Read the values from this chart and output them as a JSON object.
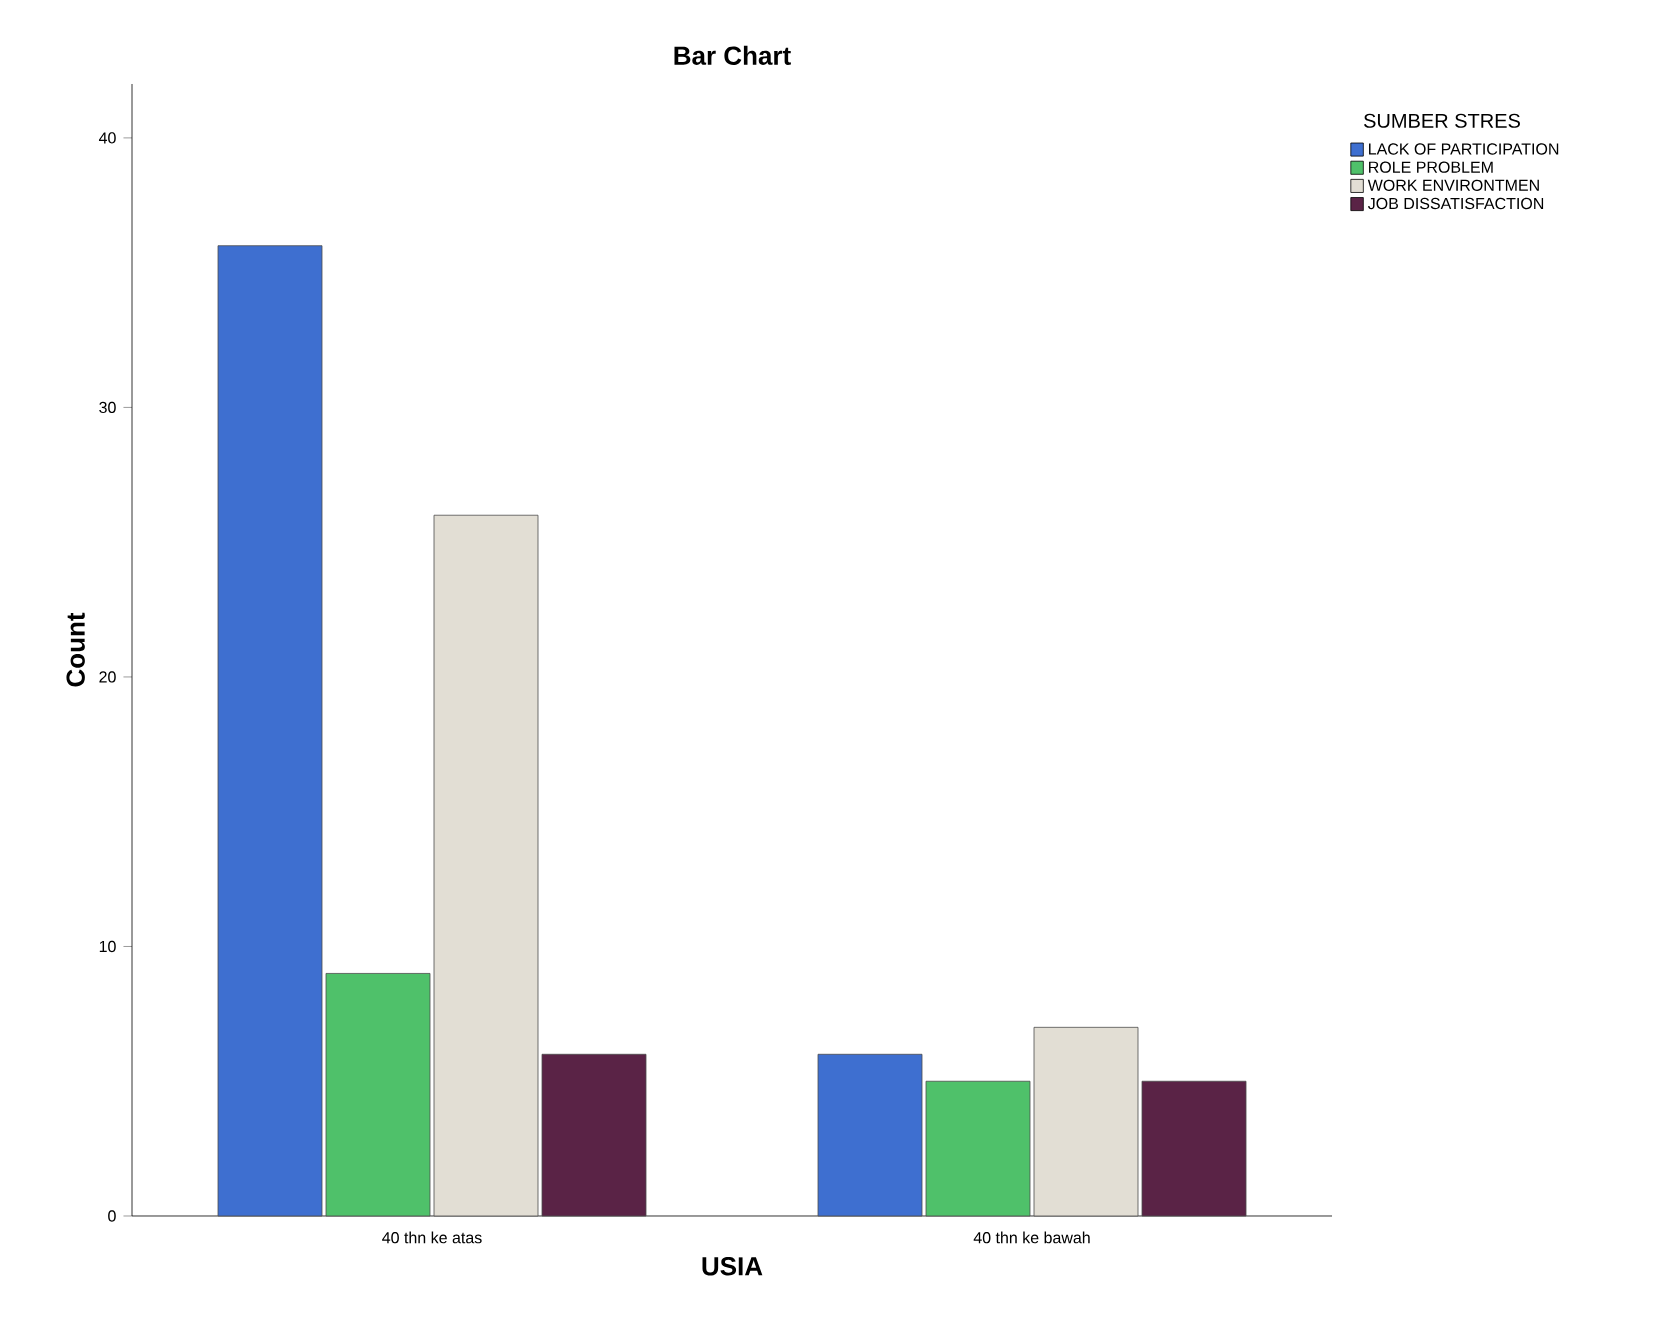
{
  "chart_data": {
    "type": "bar",
    "title": "Bar Chart",
    "xlabel": "USIA",
    "ylabel": "Count",
    "legend_title": "SUMBER STRES",
    "categories": [
      "40 thn ke atas",
      "40 thn ke bawah"
    ],
    "series": [
      {
        "name": "LACK OF PARTICIPATION",
        "color": "#3e6fd0",
        "values": [
          36,
          6
        ]
      },
      {
        "name": "ROLE PROBLEM",
        "color": "#4fc16a",
        "values": [
          9,
          5
        ]
      },
      {
        "name": "WORK ENVIRONTMEN",
        "color": "#e2ded4",
        "values": [
          26,
          7
        ]
      },
      {
        "name": "JOB DISSATISFACTION",
        "color": "#5a2346",
        "values": [
          6,
          5
        ]
      }
    ],
    "ylim": [
      0,
      42
    ],
    "yticks": [
      0,
      10,
      20,
      30,
      40
    ],
    "grid": false,
    "legend": "top right"
  }
}
